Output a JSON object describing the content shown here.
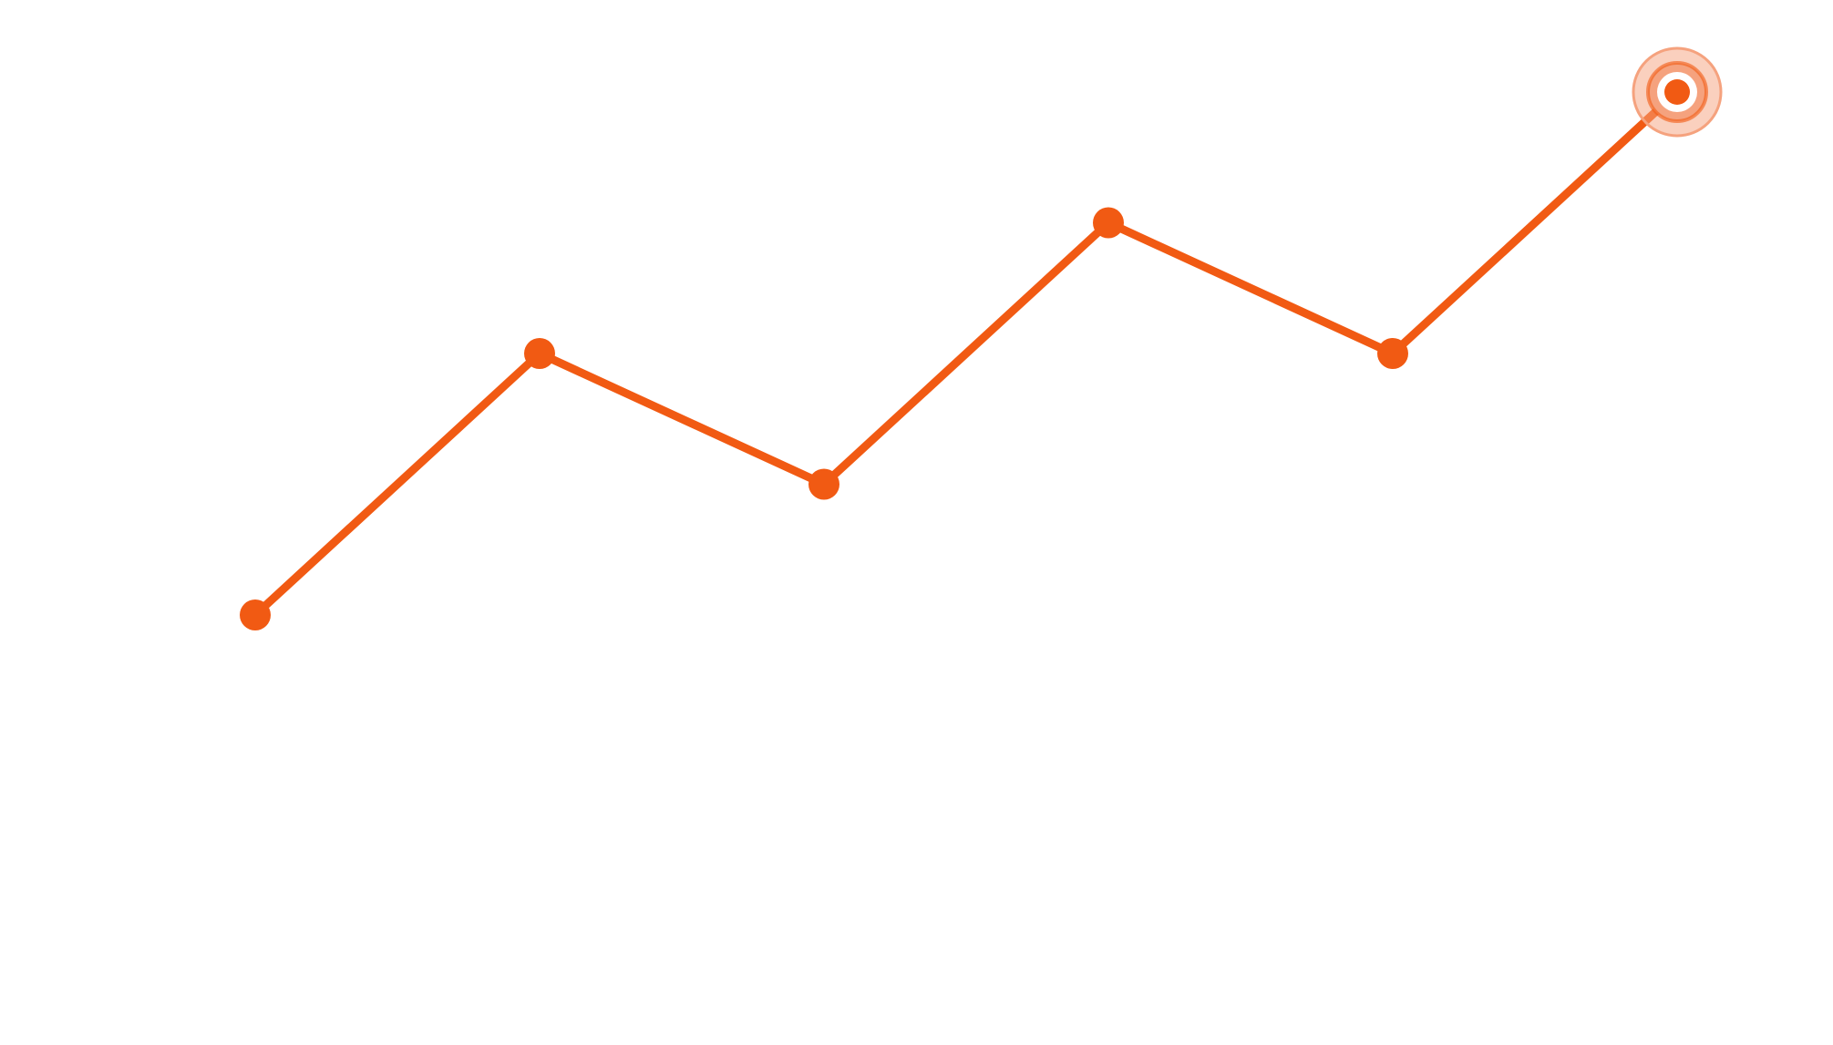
{
  "chart_data": {
    "type": "line",
    "x": [
      1,
      2,
      3,
      4,
      5,
      6
    ],
    "y": [
      1,
      3,
      2,
      4,
      3,
      5
    ],
    "ylim": [
      0,
      5
    ],
    "grid": false,
    "highlighted_point_index": 5,
    "colors": {
      "line": "#F15A13",
      "marker": "#F15A13",
      "highlight_ring": "#F5A27E",
      "highlight_inner": "#ffffff"
    }
  }
}
